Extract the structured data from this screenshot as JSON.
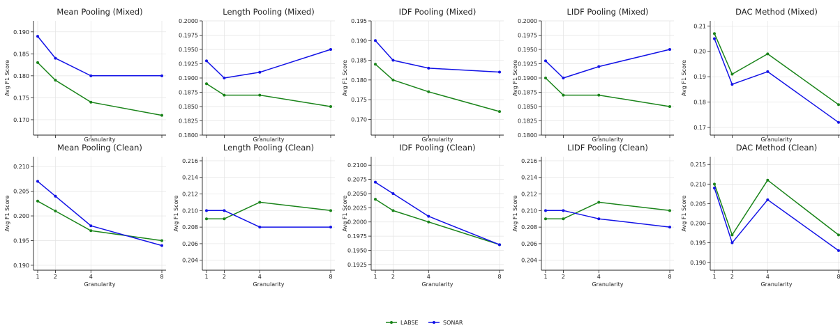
{
  "colors": {
    "LABSE": "#1a841a",
    "SONAR": "#1212e6"
  },
  "legend": {
    "items": [
      "LABSE",
      "SONAR"
    ],
    "placement": "bottom-center"
  },
  "chart_data": [
    {
      "type": "line",
      "title": "Mean Pooling (Mixed)",
      "xlabel": "Granularity",
      "ylabel": "Avg F1 Score",
      "x": [
        1,
        2,
        4,
        8
      ],
      "ylim": [
        0.1665,
        0.1925
      ],
      "yticks": [
        "0.170",
        "0.175",
        "0.180",
        "0.185",
        "0.190"
      ],
      "show_xticks": false,
      "grid": true,
      "series": [
        {
          "name": "LABSE",
          "values": [
            0.183,
            0.179,
            0.174,
            0.171
          ]
        },
        {
          "name": "SONAR",
          "values": [
            0.189,
            0.184,
            0.18,
            0.18
          ]
        }
      ]
    },
    {
      "type": "line",
      "title": "Length Pooling (Mixed)",
      "xlabel": "Granularity",
      "ylabel": "",
      "x": [
        1,
        2,
        4,
        8
      ],
      "ylim": [
        0.18,
        0.2
      ],
      "yticks": [
        "0.1800",
        "0.1825",
        "0.1850",
        "0.1875",
        "0.1900",
        "0.1925",
        "0.1950",
        "0.1975",
        "0.2000"
      ],
      "show_xticks": false,
      "grid": true,
      "series": [
        {
          "name": "LABSE",
          "values": [
            0.189,
            0.187,
            0.187,
            0.185
          ]
        },
        {
          "name": "SONAR",
          "values": [
            0.193,
            0.19,
            0.191,
            0.195
          ]
        }
      ]
    },
    {
      "type": "line",
      "title": "IDF Pooling (Mixed)",
      "xlabel": "Granularity",
      "ylabel": "Avg F1 Score",
      "x": [
        1,
        2,
        4,
        8
      ],
      "ylim": [
        0.166,
        0.195
      ],
      "yticks": [
        "0.170",
        "0.175",
        "0.180",
        "0.185",
        "0.190",
        "0.195"
      ],
      "show_xticks": false,
      "grid": true,
      "series": [
        {
          "name": "LABSE",
          "values": [
            0.184,
            0.18,
            0.177,
            0.172
          ]
        },
        {
          "name": "SONAR",
          "values": [
            0.19,
            0.185,
            0.183,
            0.182
          ]
        }
      ]
    },
    {
      "type": "line",
      "title": "LIDF Pooling (Mixed)",
      "xlabel": "Granularity",
      "ylabel": "Avg F1 Score",
      "x": [
        1,
        2,
        4,
        8
      ],
      "ylim": [
        0.18,
        0.2
      ],
      "yticks": [
        "0.1800",
        "0.1825",
        "0.1850",
        "0.1875",
        "0.1900",
        "0.1925",
        "0.1950",
        "0.1975",
        "0.2000"
      ],
      "show_xticks": false,
      "grid": true,
      "series": [
        {
          "name": "LABSE",
          "values": [
            0.19,
            0.187,
            0.187,
            0.185
          ]
        },
        {
          "name": "SONAR",
          "values": [
            0.193,
            0.19,
            0.192,
            0.195
          ]
        }
      ]
    },
    {
      "type": "line",
      "title": "DAC Method (Mixed)",
      "xlabel": "Granularity",
      "ylabel": "Avg F1 Score",
      "x": [
        1,
        2,
        4,
        8
      ],
      "ylim": [
        0.167,
        0.212
      ],
      "yticks": [
        "0.17",
        "0.18",
        "0.19",
        "0.20",
        "0.21"
      ],
      "show_xticks": false,
      "grid": true,
      "series": [
        {
          "name": "LABSE",
          "values": [
            0.207,
            0.191,
            0.199,
            0.179
          ]
        },
        {
          "name": "SONAR",
          "values": [
            0.205,
            0.187,
            0.192,
            0.172
          ]
        }
      ]
    },
    {
      "type": "line",
      "title": "Mean Pooling (Clean)",
      "xlabel": "Granularity",
      "ylabel": "Avg F1 Score",
      "x": [
        1,
        2,
        4,
        8
      ],
      "ylim": [
        0.189,
        0.212
      ],
      "yticks": [
        "0.190",
        "0.195",
        "0.200",
        "0.205",
        "0.210"
      ],
      "show_xticks": true,
      "grid": true,
      "series": [
        {
          "name": "LABSE",
          "values": [
            0.203,
            0.201,
            0.197,
            0.195
          ]
        },
        {
          "name": "SONAR",
          "values": [
            0.207,
            0.204,
            0.198,
            0.194
          ]
        }
      ]
    },
    {
      "type": "line",
      "title": "Length Pooling (Clean)",
      "xlabel": "Granularity",
      "ylabel": "Avg F1 Score",
      "x": [
        1,
        2,
        4,
        8
      ],
      "ylim": [
        0.2028,
        0.2165
      ],
      "yticks": [
        "0.204",
        "0.206",
        "0.208",
        "0.210",
        "0.212",
        "0.214",
        "0.216"
      ],
      "show_xticks": true,
      "grid": true,
      "series": [
        {
          "name": "LABSE",
          "values": [
            0.209,
            0.209,
            0.211,
            0.21
          ]
        },
        {
          "name": "SONAR",
          "values": [
            0.21,
            0.21,
            0.208,
            0.208
          ]
        }
      ]
    },
    {
      "type": "line",
      "title": "IDF Pooling (Clean)",
      "xlabel": "Granularity",
      "ylabel": "Avg F1 Score",
      "x": [
        1,
        2,
        4,
        8
      ],
      "ylim": [
        0.1915,
        0.2115
      ],
      "yticks": [
        "0.1925",
        "0.1950",
        "0.1975",
        "0.2000",
        "0.2025",
        "0.2050",
        "0.2075",
        "0.2100"
      ],
      "show_xticks": true,
      "grid": true,
      "series": [
        {
          "name": "LABSE",
          "values": [
            0.204,
            0.202,
            0.2,
            0.196
          ]
        },
        {
          "name": "SONAR",
          "values": [
            0.207,
            0.205,
            0.201,
            0.196
          ]
        }
      ]
    },
    {
      "type": "line",
      "title": "LIDF Pooling (Clean)",
      "xlabel": "Granularity",
      "ylabel": "Avg F1 Score",
      "x": [
        1,
        2,
        4,
        8
      ],
      "ylim": [
        0.2028,
        0.2165
      ],
      "yticks": [
        "0.204",
        "0.206",
        "0.208",
        "0.210",
        "0.212",
        "0.214",
        "0.216"
      ],
      "show_xticks": true,
      "grid": true,
      "series": [
        {
          "name": "LABSE",
          "values": [
            0.209,
            0.209,
            0.211,
            0.21
          ]
        },
        {
          "name": "SONAR",
          "values": [
            0.21,
            0.21,
            0.209,
            0.208
          ]
        }
      ]
    },
    {
      "type": "line",
      "title": "DAC Method (Clean)",
      "xlabel": "Granularity",
      "ylabel": "Avg F1 Score",
      "x": [
        1,
        2,
        4,
        8
      ],
      "ylim": [
        0.188,
        0.217
      ],
      "yticks": [
        "0.190",
        "0.195",
        "0.200",
        "0.205",
        "0.210",
        "0.215"
      ],
      "show_xticks": true,
      "grid": true,
      "series": [
        {
          "name": "LABSE",
          "values": [
            0.21,
            0.197,
            0.211,
            0.197
          ]
        },
        {
          "name": "SONAR",
          "values": [
            0.209,
            0.195,
            0.206,
            0.193
          ]
        }
      ]
    }
  ]
}
